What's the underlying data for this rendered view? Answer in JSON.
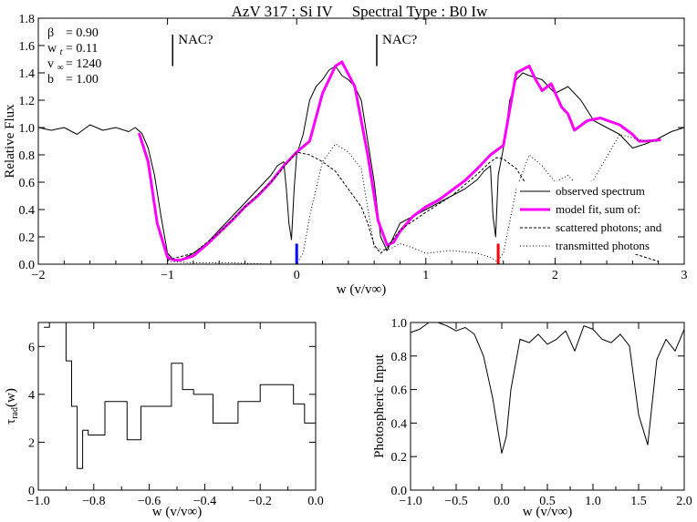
{
  "colors": {
    "observed": "#000000",
    "model": "#ff00ff",
    "blue_marker": "#0000ff",
    "red_marker": "#ff0000"
  },
  "chart_data": [
    {
      "type": "line",
      "title": "AzV 317 : Si IV     Spectral Type : B0 Iw",
      "xlabel": "w (v/v∞)",
      "ylabel": "Relative Flux",
      "xlim": [
        -2,
        3
      ],
      "ylim": [
        0,
        1.8
      ],
      "xticks": [
        -2,
        -1,
        0,
        1,
        2,
        3
      ],
      "xtick_labels": [
        "−2",
        "−1",
        "0",
        "1",
        "2",
        "3"
      ],
      "yticks": [
        0,
        0.2,
        0.4,
        0.6,
        0.8,
        1.0,
        1.2,
        1.4,
        1.6,
        1.8
      ],
      "ytick_labels": [
        "0.0",
        "0.2",
        "0.4",
        "0.6",
        "0.8",
        "1.0",
        "1.2",
        "1.4",
        "1.6",
        "1.8"
      ],
      "params": [
        {
          "name": "β",
          "value": "= 0.90"
        },
        {
          "name": "w",
          "sub": "t",
          "value": "= 0.11"
        },
        {
          "name": "v",
          "sub": "∞",
          "value": "= 1240"
        },
        {
          "name": "b",
          "value": "= 1.00"
        }
      ],
      "annotations": [
        {
          "text": "NAC?",
          "x": -0.96,
          "y_bottom": 1.45,
          "y_top": 1.68
        },
        {
          "text": "NAC?",
          "x": 0.62,
          "y_bottom": 1.45,
          "y_top": 1.68
        }
      ],
      "markers": [
        {
          "x": 0.0,
          "y0": 0,
          "y1": 0.15,
          "color": "blue_marker"
        },
        {
          "x": 1.56,
          "y0": 0,
          "y1": 0.15,
          "color": "red_marker"
        }
      ],
      "legend": {
        "position": "right-middle",
        "entries": [
          {
            "label": "observed spectrum",
            "style": "solid"
          },
          {
            "label": "model fit, sum of:",
            "style": "magenta"
          },
          {
            "label": "scattered photons; and",
            "style": "dashed"
          },
          {
            "label": "transmitted photons",
            "style": "dotted"
          }
        ]
      },
      "series": [
        {
          "name": "observed spectrum",
          "style": "solid",
          "x": [
            -2.0,
            -1.9,
            -1.8,
            -1.7,
            -1.6,
            -1.5,
            -1.4,
            -1.3,
            -1.25,
            -1.2,
            -1.15,
            -1.1,
            -1.05,
            -1.0,
            -0.95,
            -0.9,
            -0.8,
            -0.7,
            -0.6,
            -0.5,
            -0.4,
            -0.3,
            -0.2,
            -0.15,
            -0.1,
            -0.08,
            -0.06,
            -0.04,
            -0.02,
            0.0,
            0.05,
            0.1,
            0.15,
            0.2,
            0.25,
            0.3,
            0.35,
            0.4,
            0.45,
            0.5,
            0.55,
            0.6,
            0.65,
            0.7,
            0.8,
            0.9,
            1.0,
            1.1,
            1.2,
            1.3,
            1.4,
            1.45,
            1.5,
            1.52,
            1.54,
            1.56,
            1.6,
            1.65,
            1.7,
            1.75,
            1.8,
            1.9,
            2.0,
            2.1,
            2.2,
            2.3,
            2.4,
            2.5,
            2.6,
            2.7,
            2.8,
            2.9,
            3.0
          ],
          "y": [
            1.0,
            0.98,
            1.0,
            0.95,
            1.02,
            0.98,
            1.0,
            0.97,
            1.0,
            0.96,
            0.85,
            0.65,
            0.35,
            0.08,
            0.03,
            0.03,
            0.08,
            0.15,
            0.25,
            0.35,
            0.45,
            0.55,
            0.65,
            0.72,
            0.75,
            0.55,
            0.3,
            0.18,
            0.55,
            0.8,
            0.95,
            1.2,
            1.3,
            1.35,
            1.42,
            1.45,
            1.38,
            1.35,
            1.3,
            1.2,
            0.9,
            0.6,
            0.2,
            0.1,
            0.3,
            0.35,
            0.4,
            0.45,
            0.5,
            0.55,
            0.62,
            0.68,
            0.72,
            0.35,
            0.2,
            0.65,
            0.85,
            1.2,
            1.35,
            1.4,
            1.38,
            1.35,
            1.25,
            1.3,
            1.2,
            1.05,
            1.0,
            0.95,
            0.85,
            0.88,
            0.92,
            0.97,
            1.0
          ]
        },
        {
          "name": "model fit, sum of:",
          "style": "magenta",
          "x": [
            -1.22,
            -1.15,
            -1.08,
            -1.0,
            -0.95,
            -0.9,
            -0.8,
            -0.7,
            -0.6,
            -0.5,
            -0.4,
            -0.3,
            -0.2,
            -0.1,
            0.0,
            0.1,
            0.2,
            0.3,
            0.35,
            0.45,
            0.55,
            0.63,
            0.7,
            0.75,
            0.8,
            0.9,
            1.0,
            1.1,
            1.2,
            1.3,
            1.4,
            1.5,
            1.6,
            1.7,
            1.8,
            1.85,
            1.9,
            1.97,
            2.05,
            2.1,
            2.15,
            2.25,
            2.35,
            2.5,
            2.6,
            2.65,
            2.7,
            2.82
          ],
          "y": [
            0.96,
            0.75,
            0.3,
            0.05,
            0.03,
            0.03,
            0.06,
            0.14,
            0.23,
            0.32,
            0.42,
            0.5,
            0.6,
            0.72,
            0.82,
            0.9,
            1.25,
            1.45,
            1.48,
            1.3,
            0.8,
            0.32,
            0.14,
            0.16,
            0.24,
            0.35,
            0.42,
            0.47,
            0.54,
            0.61,
            0.7,
            0.8,
            0.87,
            1.4,
            1.45,
            1.35,
            1.27,
            1.32,
            1.15,
            1.1,
            0.98,
            1.05,
            1.07,
            1.02,
            0.95,
            0.9,
            0.9,
            0.91
          ]
        },
        {
          "name": "scattered photons; and",
          "style": "dashed",
          "x": [
            -1.0,
            -0.8,
            -0.6,
            -0.4,
            -0.2,
            0.0,
            0.1,
            0.2,
            0.3,
            0.4,
            0.5,
            0.55,
            0.6,
            0.65,
            0.7,
            0.8,
            1.0,
            1.2,
            1.4,
            1.5,
            1.55,
            1.6,
            1.7,
            1.8,
            2.0,
            2.2,
            2.4,
            2.6,
            2.8
          ],
          "y": [
            0.03,
            0.08,
            0.23,
            0.42,
            0.6,
            0.82,
            0.8,
            0.75,
            0.68,
            0.55,
            0.42,
            0.3,
            0.14,
            0.08,
            0.12,
            0.25,
            0.38,
            0.5,
            0.66,
            0.75,
            0.78,
            0.77,
            0.7,
            0.55,
            0.42,
            0.32,
            0.2,
            0.08,
            0.02
          ]
        },
        {
          "name": "transmitted photons",
          "style": "dotted",
          "x": [
            -1.0,
            -0.8,
            -0.5,
            -0.2,
            0.0,
            0.05,
            0.1,
            0.2,
            0.3,
            0.4,
            0.5,
            0.6,
            0.7,
            0.8,
            0.9,
            1.0,
            1.2,
            1.4,
            1.5,
            1.55,
            1.6,
            1.7,
            1.8,
            1.9,
            2.0,
            2.1,
            2.2,
            2.3,
            2.5,
            2.7,
            2.8
          ],
          "y": [
            0.02,
            0.01,
            0.01,
            0.0,
            0.0,
            0.08,
            0.35,
            0.75,
            0.88,
            0.82,
            0.7,
            0.12,
            0.1,
            0.15,
            0.12,
            0.08,
            0.1,
            0.08,
            0.05,
            0.02,
            0.08,
            0.55,
            0.8,
            0.72,
            0.6,
            0.65,
            0.55,
            0.62,
            0.95,
            0.9,
            0.9
          ]
        }
      ]
    },
    {
      "type": "line",
      "title": "",
      "xlabel": "w (v/v∞)",
      "ylabel": "τ_rad(w)",
      "xlim": [
        -1.0,
        0.0
      ],
      "ylim": [
        0,
        7
      ],
      "xticks": [
        -1.0,
        -0.8,
        -0.6,
        -0.4,
        -0.2,
        0.0
      ],
      "xtick_labels": [
        "−1.0",
        "−0.8",
        "−0.6",
        "−0.4",
        "−0.2",
        "0.0"
      ],
      "yticks": [
        0,
        2,
        4,
        6
      ],
      "ytick_labels": [
        "0",
        "2",
        "4",
        "6"
      ],
      "series": [
        {
          "name": "",
          "style": "step",
          "x": [
            -0.98,
            -0.96,
            -0.93,
            -0.9,
            -0.88,
            -0.86,
            -0.84,
            -0.82,
            -0.8,
            -0.76,
            -0.68,
            -0.63,
            -0.58,
            -0.52,
            -0.48,
            -0.44,
            -0.37,
            -0.28,
            -0.2,
            -0.08,
            -0.04
          ],
          "y": [
            6.8,
            7.0,
            7.0,
            5.4,
            3.5,
            0.9,
            2.5,
            2.3,
            2.3,
            3.7,
            2.1,
            3.5,
            3.5,
            5.3,
            4.2,
            4.0,
            2.8,
            3.7,
            4.4,
            3.6,
            2.8
          ]
        }
      ]
    },
    {
      "type": "line",
      "title": "",
      "xlabel": "w (v/v∞)",
      "ylabel": "Photospheric Input",
      "xlim": [
        -1.0,
        2.0
      ],
      "ylim": [
        0,
        1.0
      ],
      "xticks": [
        -1.0,
        -0.5,
        0.0,
        0.5,
        1.0,
        1.5,
        2.0
      ],
      "xtick_labels": [
        "−1.0",
        "−0.5",
        "0.0",
        "0.5",
        "1.0",
        "1.5",
        "2.0"
      ],
      "yticks": [
        0,
        0.2,
        0.4,
        0.6,
        0.8,
        1.0
      ],
      "ytick_labels": [
        "0.0",
        "0.2",
        "0.4",
        "0.6",
        "0.8",
        "1.0"
      ],
      "series": [
        {
          "name": "",
          "style": "solid",
          "x": [
            -1.0,
            -0.9,
            -0.8,
            -0.7,
            -0.6,
            -0.5,
            -0.4,
            -0.3,
            -0.2,
            -0.1,
            0.0,
            0.05,
            0.1,
            0.2,
            0.3,
            0.4,
            0.5,
            0.6,
            0.7,
            0.8,
            0.9,
            1.0,
            1.1,
            1.2,
            1.3,
            1.4,
            1.5,
            1.6,
            1.7,
            1.8,
            1.9,
            2.0
          ],
          "y": [
            0.94,
            0.96,
            1.0,
            1.0,
            0.98,
            0.95,
            0.97,
            0.93,
            0.8,
            0.55,
            0.22,
            0.32,
            0.6,
            0.9,
            0.88,
            0.93,
            0.87,
            0.9,
            0.95,
            0.83,
            0.98,
            0.96,
            0.9,
            0.88,
            0.93,
            0.86,
            0.45,
            0.27,
            0.78,
            0.9,
            0.83,
            0.96
          ]
        }
      ]
    }
  ]
}
